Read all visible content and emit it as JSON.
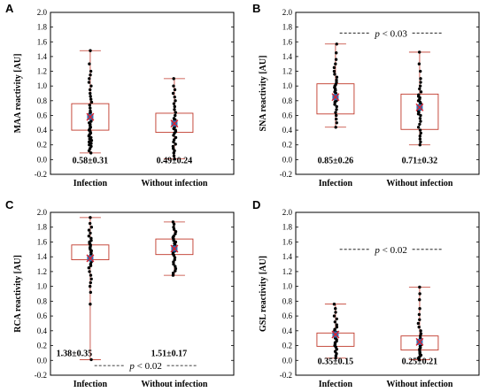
{
  "colors": {
    "box": "#c0392b",
    "whisker": "#c0392b",
    "point": "#000000",
    "mean_marker": "#2e6db4",
    "cross": "#e0202a",
    "frame": "#000000"
  },
  "chart_data": [
    {
      "type": "box",
      "panel": "A",
      "ylabel": "MAA reactivity [AU]",
      "ylim": [
        -0.2,
        2.0
      ],
      "yticks": [
        "-0.2",
        "0.0",
        "0.2",
        "0.4",
        "0.6",
        "0.8",
        "1.0",
        "1.2",
        "1.4",
        "1.6",
        "1.8",
        "2.0"
      ],
      "categories": [
        "Infection",
        "Without infection"
      ],
      "boxes": [
        {
          "q1": 0.4,
          "q3": 0.76,
          "min": 0.09,
          "max": 1.48,
          "mean": 0.58,
          "stat_label": "0.58±0.31",
          "points": [
            0.09,
            0.12,
            0.15,
            0.18,
            0.2,
            0.22,
            0.24,
            0.26,
            0.28,
            0.3,
            0.32,
            0.34,
            0.36,
            0.38,
            0.4,
            0.42,
            0.44,
            0.46,
            0.48,
            0.5,
            0.52,
            0.54,
            0.56,
            0.58,
            0.6,
            0.62,
            0.64,
            0.66,
            0.7,
            0.74,
            0.78,
            0.82,
            0.86,
            0.9,
            0.95,
            1.0,
            1.05,
            1.1,
            1.15,
            1.2,
            1.3,
            1.48
          ]
        },
        {
          "q1": 0.37,
          "q3": 0.63,
          "min": 0.01,
          "max": 1.1,
          "mean": 0.49,
          "stat_label": "0.49±0.24",
          "points": [
            0.01,
            0.05,
            0.09,
            0.12,
            0.15,
            0.18,
            0.21,
            0.24,
            0.27,
            0.3,
            0.33,
            0.36,
            0.38,
            0.4,
            0.42,
            0.44,
            0.46,
            0.48,
            0.5,
            0.52,
            0.54,
            0.56,
            0.6,
            0.64,
            0.68,
            0.72,
            0.76,
            0.8,
            0.85,
            0.9,
            0.95,
            1.0,
            1.1
          ]
        }
      ]
    },
    {
      "type": "box",
      "panel": "B",
      "ylabel": "SNA reactivity [AU]",
      "ylim": [
        -0.2,
        2.0
      ],
      "yticks": [
        "-0.2",
        "0.0",
        "0.2",
        "0.4",
        "0.6",
        "0.8",
        "1.0",
        "1.2",
        "1.4",
        "1.6",
        "1.8",
        "2.0"
      ],
      "categories": [
        "Infection",
        "Without infection"
      ],
      "annotation": {
        "text": "p < 0.03",
        "y": 1.72
      },
      "boxes": [
        {
          "q1": 0.62,
          "q3": 1.03,
          "min": 0.44,
          "max": 1.57,
          "mean": 0.85,
          "stat_label": "0.85±0.26",
          "points": [
            0.44,
            0.5,
            0.55,
            0.6,
            0.64,
            0.68,
            0.72,
            0.75,
            0.78,
            0.8,
            0.82,
            0.84,
            0.86,
            0.88,
            0.9,
            0.92,
            0.94,
            0.96,
            0.98,
            1.0,
            1.02,
            1.05,
            1.08,
            1.12,
            1.16,
            1.2,
            1.25,
            1.3,
            1.36,
            1.45,
            1.57
          ]
        },
        {
          "q1": 0.41,
          "q3": 0.89,
          "min": 0.2,
          "max": 1.46,
          "mean": 0.71,
          "stat_label": "0.71±0.32",
          "points": [
            0.2,
            0.24,
            0.28,
            0.32,
            0.36,
            0.4,
            0.44,
            0.48,
            0.52,
            0.56,
            0.6,
            0.62,
            0.64,
            0.66,
            0.68,
            0.7,
            0.72,
            0.74,
            0.76,
            0.78,
            0.8,
            0.82,
            0.84,
            0.86,
            0.88,
            0.92,
            0.96,
            1.0,
            1.05,
            1.1,
            1.2,
            1.3,
            1.46
          ]
        }
      ]
    },
    {
      "type": "box",
      "panel": "C",
      "ylabel": "RCA reactivity [AU]",
      "ylim": [
        -0.2,
        2.0
      ],
      "yticks": [
        "-0.2",
        "0.0",
        "0.2",
        "0.4",
        "0.6",
        "0.8",
        "1.0",
        "1.2",
        "1.4",
        "1.6",
        "1.8",
        "2.0"
      ],
      "categories": [
        "Infection",
        "Without infection"
      ],
      "annotation": {
        "text": "p < 0.02",
        "y": -0.07
      },
      "boxes": [
        {
          "q1": 1.36,
          "q3": 1.56,
          "min": 0.01,
          "max": 1.93,
          "mean": 1.38,
          "stat_label": "1.38±0.35",
          "points": [
            0.01,
            0.76,
            0.92,
            1.0,
            1.05,
            1.1,
            1.15,
            1.2,
            1.25,
            1.28,
            1.3,
            1.33,
            1.36,
            1.38,
            1.4,
            1.42,
            1.44,
            1.46,
            1.48,
            1.5,
            1.52,
            1.54,
            1.56,
            1.58,
            1.6,
            1.62,
            1.65,
            1.68,
            1.72,
            1.76,
            1.8,
            1.85,
            1.93
          ]
        },
        {
          "q1": 1.43,
          "q3": 1.64,
          "min": 1.15,
          "max": 1.87,
          "mean": 1.51,
          "stat_label": "1.51±0.17",
          "points": [
            1.15,
            1.18,
            1.21,
            1.24,
            1.27,
            1.3,
            1.33,
            1.36,
            1.39,
            1.42,
            1.44,
            1.46,
            1.48,
            1.5,
            1.52,
            1.54,
            1.56,
            1.58,
            1.6,
            1.62,
            1.64,
            1.66,
            1.68,
            1.71,
            1.74,
            1.77,
            1.8,
            1.84,
            1.87
          ]
        }
      ]
    },
    {
      "type": "box",
      "panel": "D",
      "ylabel": "GSL reactivity [AU]",
      "ylim": [
        -0.2,
        2.0
      ],
      "yticks": [
        "-0.2",
        "0.0",
        "0.2",
        "0.4",
        "0.6",
        "0.8",
        "1.0",
        "1.2",
        "1.4",
        "1.6",
        "1.8",
        "2.0"
      ],
      "categories": [
        "Infection",
        "Without infection"
      ],
      "annotation": {
        "text": "p < 0.02",
        "y": 1.5
      },
      "boxes": [
        {
          "q1": 0.19,
          "q3": 0.37,
          "min": 0.03,
          "max": 0.76,
          "mean": 0.35,
          "stat_label": "0.35±0.15",
          "points": [
            0.03,
            0.06,
            0.09,
            0.12,
            0.15,
            0.18,
            0.2,
            0.22,
            0.24,
            0.26,
            0.28,
            0.3,
            0.32,
            0.34,
            0.36,
            0.38,
            0.4,
            0.42,
            0.45,
            0.48,
            0.52,
            0.56,
            0.6,
            0.65,
            0.7,
            0.76
          ]
        },
        {
          "q1": 0.14,
          "q3": 0.33,
          "min": 0.01,
          "max": 0.99,
          "mean": 0.25,
          "stat_label": "0.25±0.21",
          "points": [
            0.01,
            0.03,
            0.05,
            0.07,
            0.09,
            0.11,
            0.13,
            0.15,
            0.17,
            0.19,
            0.21,
            0.23,
            0.25,
            0.27,
            0.3,
            0.33,
            0.36,
            0.4,
            0.45,
            0.5,
            0.55,
            0.62,
            0.7,
            0.82,
            0.9,
            0.99
          ]
        }
      ]
    }
  ]
}
